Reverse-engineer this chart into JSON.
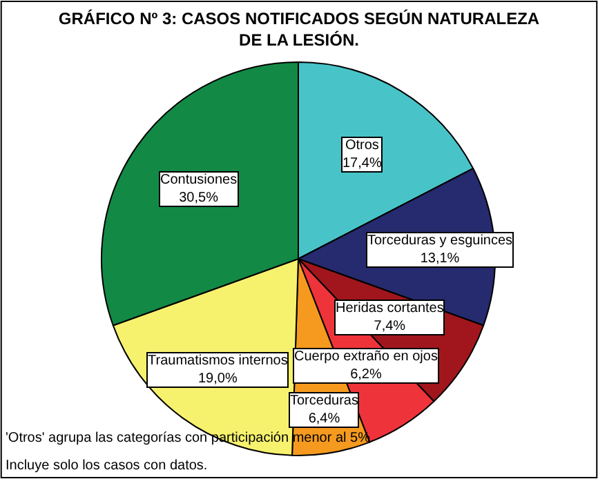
{
  "chart_data": {
    "type": "pie",
    "title": "GRÁFICO Nº 3: CASOS NOTIFICADOS SEGÚN NATURALEZA DE LA LESIÓN.",
    "categories": [
      "Otros",
      "Torceduras y esguinces",
      "Heridas cortantes",
      "Cuerpo extraño en ojos",
      "Torceduras",
      "Traumatismos internos",
      "Contusiones"
    ],
    "values": [
      17.4,
      13.1,
      7.4,
      6.2,
      6.4,
      19.0,
      30.5
    ],
    "value_labels": [
      "17,4%",
      "13,1%",
      "7,4%",
      "6,2%",
      "6,4%",
      "19,0%",
      "30,5%"
    ],
    "colors": [
      "#48c4c8",
      "#262a6e",
      "#a0161c",
      "#ef333a",
      "#f59a1e",
      "#f7f26e",
      "#128a46"
    ],
    "annotations": [
      "'Otros' agrupa las categorías con participación menor al 5%.",
      "Incluye solo los casos con datos."
    ]
  }
}
